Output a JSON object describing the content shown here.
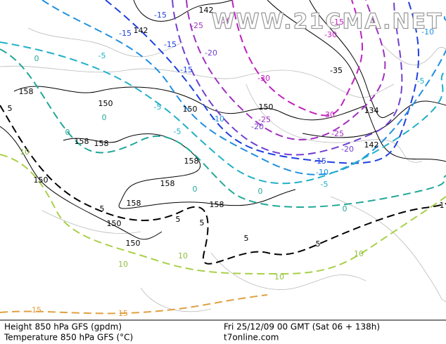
{
  "watermark": "WWW.21CMA.NET",
  "contour_labels": [
    "142",
    "-30",
    "-25",
    "-15",
    "-15",
    "142",
    "-15",
    "-20",
    "-15",
    "-30",
    "-5",
    "0",
    "158",
    "150",
    "150",
    "150",
    "-10",
    "-25",
    "-20",
    "-30",
    "134",
    "-25",
    "-20",
    "142",
    "-15",
    "-10",
    "-5",
    "-5",
    "-5",
    "0",
    "0",
    "158",
    "158",
    "158",
    "158",
    "0",
    "150",
    "158",
    "158",
    "0",
    "0",
    "5",
    "5",
    "5",
    "5",
    "5",
    "150",
    "150",
    "10",
    "10",
    "10",
    "10",
    "10",
    "15",
    "15",
    "-35",
    "-10",
    "-5",
    "1",
    "5",
    "-15",
    "-30"
  ],
  "footer": {
    "line1_left": "Height 850 hPa GFS (gpdm)",
    "line2_left": "Temperature 850 hPa GFS (°C)",
    "line1_right": "Fri 25/12/09 00 GMT (Sat 06 + 138h)",
    "line2_right": "t7online.com"
  }
}
